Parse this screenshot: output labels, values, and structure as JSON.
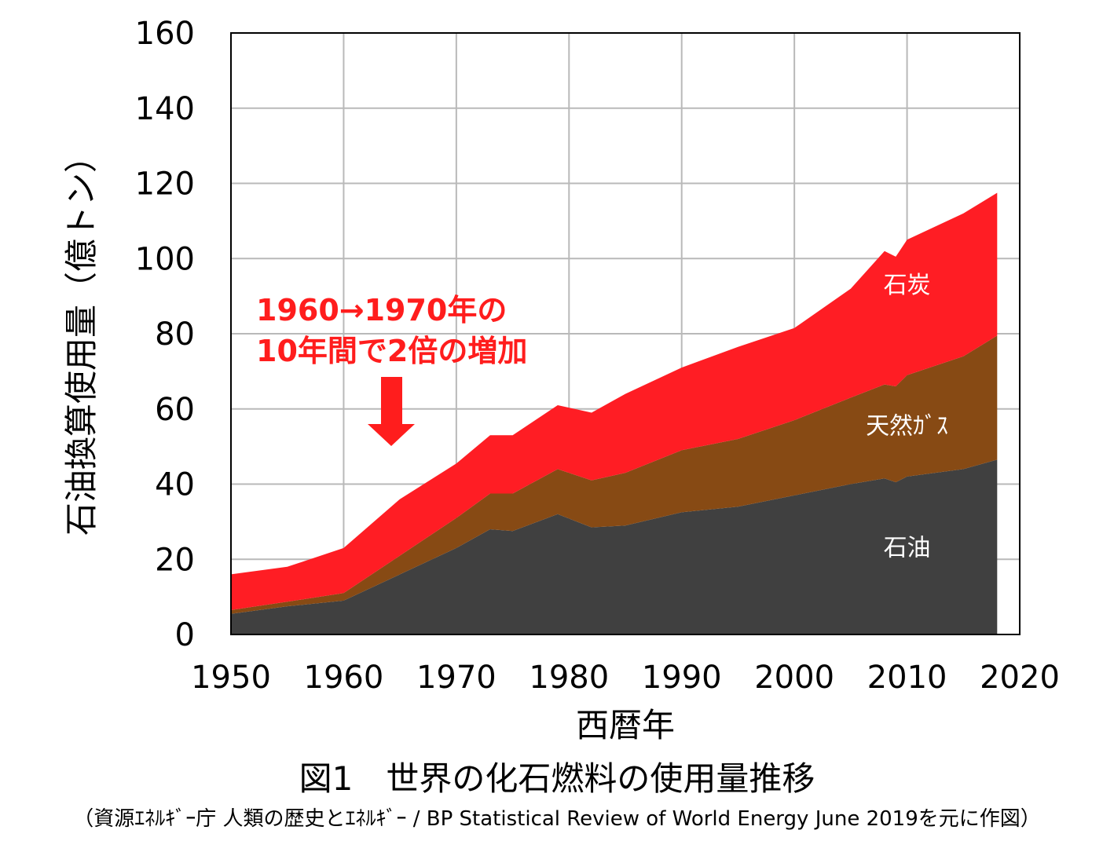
{
  "chart_data": {
    "type": "area",
    "stacked": true,
    "title": "図1　世界の化石燃料の使用量推移",
    "xlabel": "西暦年",
    "ylabel": "石油換算使用量（億トン）",
    "xlim": [
      1950,
      2020
    ],
    "ylim": [
      0,
      160
    ],
    "xticks": [
      "1950",
      "1960",
      "1970",
      "1980",
      "1990",
      "2000",
      "2010",
      "2020"
    ],
    "yticks": [
      "0",
      "20",
      "40",
      "60",
      "80",
      "100",
      "120",
      "140",
      "160"
    ],
    "grid": true,
    "x": [
      1950,
      1955,
      1960,
      1965,
      1970,
      1973,
      1975,
      1979,
      1982,
      1985,
      1990,
      1995,
      2000,
      2005,
      2008,
      2009,
      2010,
      2015,
      2018
    ],
    "series": [
      {
        "name": "石油",
        "color": "#404040",
        "values": [
          5.5,
          7.5,
          9,
          16,
          23,
          28,
          27.5,
          32,
          28.5,
          29,
          32.5,
          34,
          37,
          40,
          41.5,
          40.5,
          42,
          44,
          46.5
        ]
      },
      {
        "name": "天然ｶﾞｽ",
        "color": "#874a14",
        "values": [
          1,
          1.2,
          2,
          5,
          8,
          9.5,
          10,
          12,
          12.5,
          14,
          16.5,
          18,
          20,
          23,
          25,
          25.5,
          27,
          30,
          33
        ]
      },
      {
        "name": "石炭",
        "color": "#ff1d24",
        "values": [
          9.5,
          9.3,
          12,
          15,
          14.5,
          15.5,
          15.5,
          17,
          18,
          21,
          22,
          24.5,
          24.5,
          29,
          35.5,
          34.5,
          36,
          38,
          38
        ]
      }
    ],
    "annotations": [
      {
        "text": "1960→1970年の"
      },
      {
        "text": "10年間で2倍の増加"
      }
    ],
    "source": "（資源ｴﾈﾙｷﾞｰ庁 人類の歴史とｴﾈﾙｷﾞｰ / BP Statistical Review of World Energy June 2019を元に作図）"
  }
}
